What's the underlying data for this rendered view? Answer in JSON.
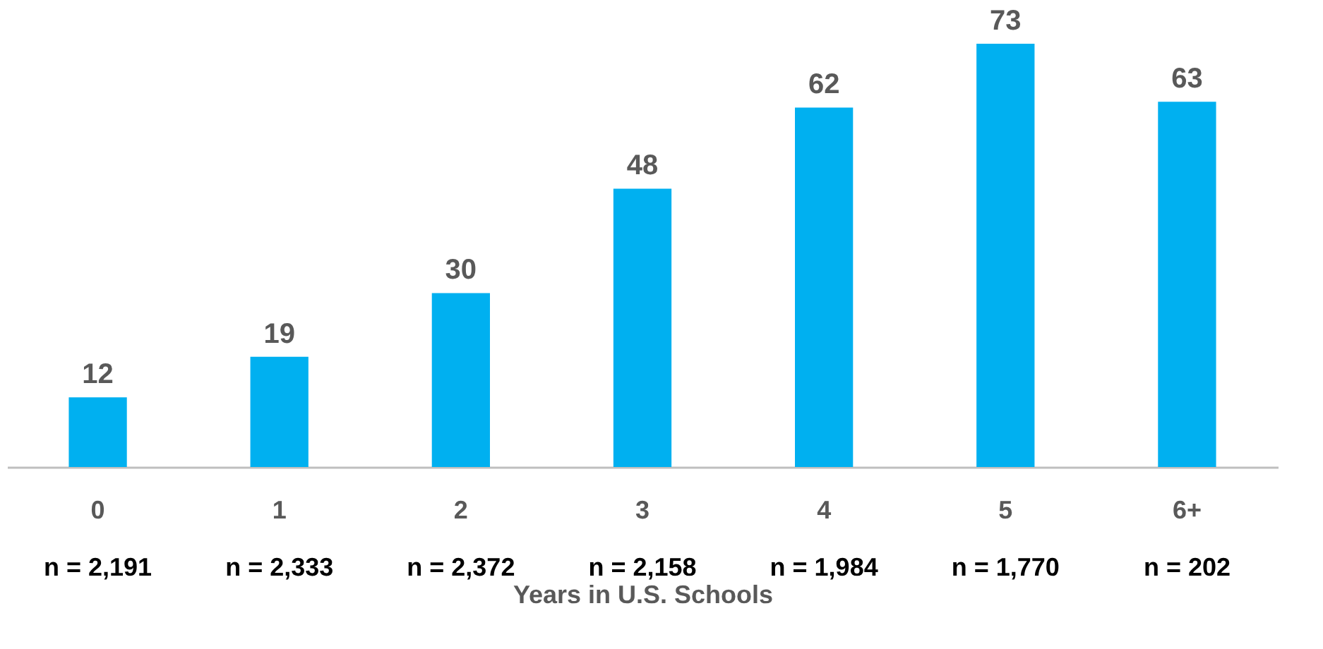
{
  "chart_data": {
    "type": "bar",
    "xlabel": "Years in U.S. Schools",
    "categories": [
      "0",
      "1",
      "2",
      "3",
      "4",
      "5",
      "6+"
    ],
    "values": [
      12,
      19,
      30,
      48,
      62,
      73,
      63
    ],
    "color": "#00b0f0",
    "data_labels": true,
    "tick_labels": "x",
    "annotations": [
      "n = 2,191",
      "n = 2,333",
      "n = 2,372",
      "n = 2,158",
      "n = 1,984",
      "n = 1,770",
      "n = 202"
    ]
  }
}
